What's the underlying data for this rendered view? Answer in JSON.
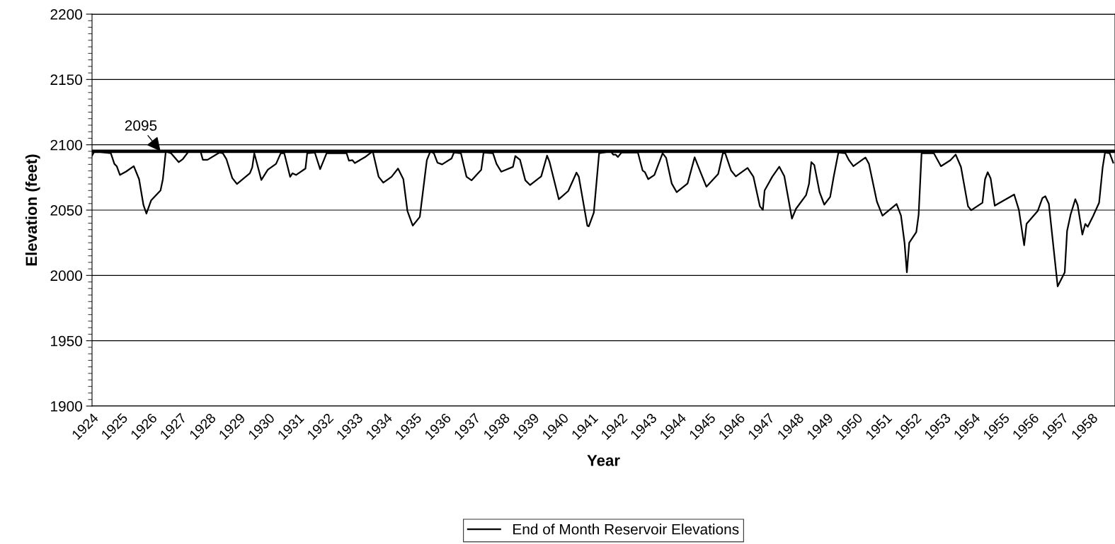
{
  "chart_data": {
    "type": "line",
    "xlabel": "Year",
    "ylabel": "Elevation (feet)",
    "xlim": [
      1924,
      1958.8
    ],
    "xticks": [
      1924,
      1925,
      1926,
      1927,
      1928,
      1929,
      1930,
      1931,
      1932,
      1933,
      1934,
      1935,
      1936,
      1937,
      1938,
      1939,
      1940,
      1941,
      1942,
      1943,
      1944,
      1945,
      1946,
      1947,
      1948,
      1949,
      1950,
      1951,
      1952,
      1953,
      1954,
      1955,
      1956,
      1957,
      1958
    ],
    "ylim": [
      1900,
      2200
    ],
    "yticks": [
      1900,
      1950,
      2000,
      2050,
      2100,
      2150,
      2200
    ],
    "grid": "y",
    "legend": "bottom",
    "marker": "none",
    "line_style": "solid",
    "ref_lines": [
      {
        "axis": "y",
        "value": 2095,
        "color": "#000000"
      }
    ],
    "annotations": [
      {
        "text": "2095",
        "x": 1926.33,
        "y": 2095
      }
    ],
    "series": [
      {
        "name": "End of Month Reservoir Elevations",
        "color": "#000000",
        "x": [
          1924.0,
          1924.08,
          1924.64,
          1924.76,
          1924.84,
          1924.95,
          1925.16,
          1925.42,
          1925.6,
          1925.75,
          1925.85,
          1926.01,
          1926.33,
          1926.41,
          1926.51,
          1926.69,
          1926.81,
          1926.95,
          1927.09,
          1927.29,
          1927.69,
          1927.77,
          1927.93,
          1928.33,
          1928.45,
          1928.57,
          1928.77,
          1928.93,
          1929.37,
          1929.45,
          1929.52,
          1929.76,
          1929.98,
          1930.26,
          1930.42,
          1930.54,
          1930.74,
          1930.82,
          1930.94,
          1931.26,
          1931.32,
          1931.58,
          1931.76,
          1931.98,
          1932.66,
          1932.74,
          1932.86,
          1932.94,
          1933.31,
          1933.55,
          1933.75,
          1933.91,
          1934.19,
          1934.41,
          1934.59,
          1934.73,
          1934.91,
          1935.15,
          1935.39,
          1935.51,
          1935.63,
          1935.75,
          1935.91,
          1936.23,
          1936.31,
          1936.55,
          1936.74,
          1936.91,
          1937.24,
          1937.32,
          1937.64,
          1937.76,
          1937.92,
          1938.08,
          1938.32,
          1938.4,
          1938.56,
          1938.74,
          1938.9,
          1939.28,
          1939.48,
          1939.56,
          1939.88,
          1940.2,
          1940.48,
          1940.56,
          1940.85,
          1940.9,
          1941.07,
          1941.25,
          1941.65,
          1941.73,
          1941.81,
          1941.89,
          1942.01,
          1942.57,
          1942.73,
          1942.81,
          1942.92,
          1943.13,
          1943.41,
          1943.53,
          1943.72,
          1943.89,
          1944.26,
          1944.5,
          1944.7,
          1944.9,
          1945.3,
          1945.46,
          1945.54,
          1945.74,
          1945.9,
          1946.3,
          1946.5,
          1946.72,
          1946.82,
          1946.88,
          1947.14,
          1947.38,
          1947.55,
          1947.81,
          1947.95,
          1948.29,
          1948.39,
          1948.47,
          1948.57,
          1948.75,
          1948.91,
          1949.11,
          1949.23,
          1949.39,
          1949.63,
          1949.75,
          1949.9,
          1950.31,
          1950.43,
          1950.7,
          1950.89,
          1951.37,
          1951.52,
          1951.64,
          1951.72,
          1951.8,
          1952.04,
          1952.12,
          1952.22,
          1952.64,
          1952.88,
          1953.2,
          1953.38,
          1953.56,
          1953.8,
          1953.91,
          1954.29,
          1954.38,
          1954.47,
          1954.57,
          1954.71,
          1954.81,
          1955.37,
          1955.53,
          1955.71,
          1955.79,
          1956.17,
          1956.33,
          1956.43,
          1956.55,
          1956.85,
          1957.09,
          1957.17,
          1957.29,
          1957.45,
          1957.53,
          1957.69,
          1957.79,
          1957.87,
          1958.06,
          1958.26,
          1958.38,
          1958.46,
          1958.62,
          1958.74
        ],
        "values": [
          2091.7,
          2095,
          2093.5,
          2085.4,
          2083.6,
          2076.9,
          2079.5,
          2083.6,
          2073.7,
          2053.8,
          2047.3,
          2057.4,
          2065,
          2073.7,
          2095,
          2093.5,
          2090.3,
          2086.7,
          2089.1,
          2095,
          2095,
          2088.5,
          2088.5,
          2094,
          2093.5,
          2089.1,
          2074.6,
          2070,
          2078.2,
          2082.7,
          2093.5,
          2073.1,
          2080.9,
          2085.4,
          2093.5,
          2093.5,
          2075.5,
          2078.2,
          2076.9,
          2081.8,
          2093.5,
          2094,
          2081.3,
          2093.5,
          2093.5,
          2087.8,
          2088.2,
          2086,
          2090.9,
          2095,
          2075.5,
          2071,
          2075.5,
          2081.8,
          2073.7,
          2049.3,
          2038.1,
          2044.8,
          2088.2,
          2095,
          2093.5,
          2086.3,
          2085,
          2089.5,
          2094,
          2093.5,
          2075.5,
          2072.8,
          2080.9,
          2094,
          2093.5,
          2085.4,
          2079.4,
          2080.9,
          2083.1,
          2091.4,
          2088.5,
          2072.8,
          2069.2,
          2075.8,
          2091.7,
          2087.2,
          2058.3,
          2064.6,
          2078.7,
          2075.5,
          2038,
          2037.6,
          2048,
          2093.5,
          2095,
          2092.5,
          2092.5,
          2090.7,
          2094,
          2094,
          2080.3,
          2079,
          2073.7,
          2076.9,
          2093.5,
          2090,
          2070.4,
          2063.7,
          2070.4,
          2090.4,
          2079,
          2067.9,
          2077.6,
          2093.5,
          2093.5,
          2080.3,
          2075.8,
          2082.3,
          2075.5,
          2052.9,
          2050.2,
          2065,
          2075.5,
          2083.2,
          2076,
          2043.5,
          2051.1,
          2061.4,
          2070,
          2086.7,
          2084.5,
          2063.7,
          2054.2,
          2060.1,
          2075.5,
          2094,
          2093.5,
          2088.2,
          2083.6,
          2090.3,
          2085.4,
          2056.5,
          2045.7,
          2054.7,
          2045.7,
          2025,
          2002.4,
          2025,
          2033.1,
          2046.6,
          2093.5,
          2093.5,
          2083.6,
          2088.2,
          2092.5,
          2083,
          2052.9,
          2049.9,
          2055.6,
          2073.7,
          2079,
          2074.2,
          2053.4,
          2054.7,
          2061.9,
          2050.2,
          2023.1,
          2039.4,
          2049.3,
          2059.2,
          2060.6,
          2054.7,
          1991.6,
          2002.4,
          2034,
          2046.6,
          2058.3,
          2053.8,
          2031.3,
          2039.4,
          2037.2,
          2045.7,
          2055.7,
          2082.7,
          2094,
          2093.5,
          2086.3
        ]
      }
    ]
  }
}
